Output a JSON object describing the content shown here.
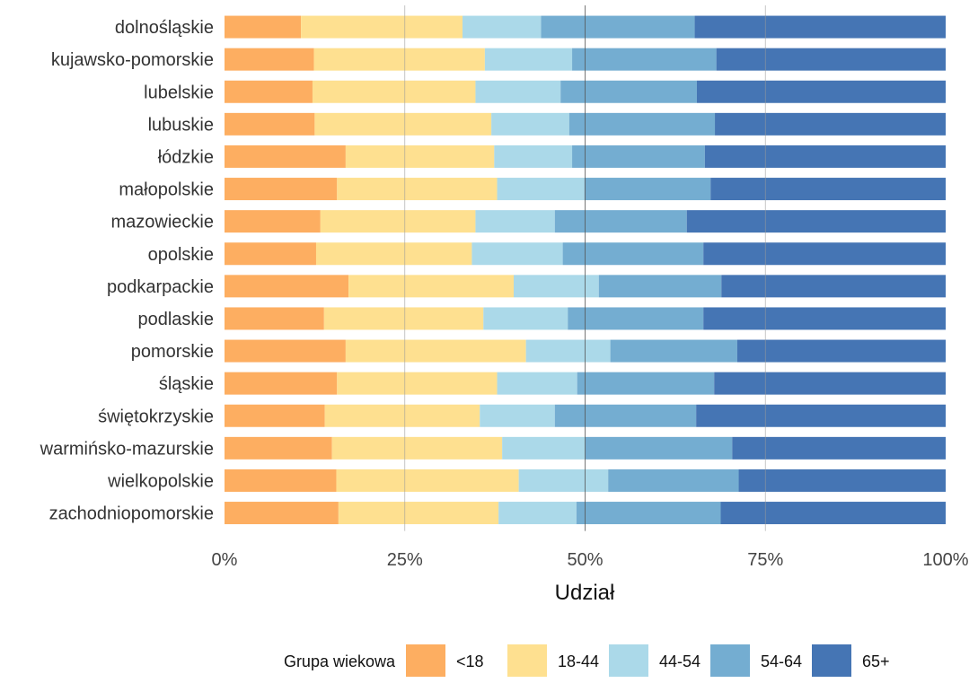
{
  "chart_data": {
    "type": "bar",
    "orientation": "horizontal",
    "stacked": true,
    "normalized": true,
    "xlabel": "Udział",
    "ylabel": "",
    "xlim": [
      0,
      1
    ],
    "x_ticks": [
      "0%",
      "25%",
      "50%",
      "75%",
      "100%"
    ],
    "grid": true,
    "legend": {
      "title": "Grupa wiekowa",
      "position": "bottom"
    },
    "categories": [
      "dolnośląskie",
      "kujawsko-pomorskie",
      "lubelskie",
      "lubuskie",
      "łódzkie",
      "małopolskie",
      "mazowieckie",
      "opolskie",
      "podkarpackie",
      "podlaskie",
      "pomorskie",
      "śląskie",
      "świętokrzyskie",
      "warmińsko-mazurskie",
      "wielkopolskie",
      "zachodniopomorskie"
    ],
    "series": [
      {
        "name": "<18",
        "color": "#fdae61",
        "values": [
          0.106,
          0.124,
          0.122,
          0.125,
          0.168,
          0.156,
          0.133,
          0.127,
          0.172,
          0.138,
          0.168,
          0.156,
          0.139,
          0.149,
          0.155,
          0.158
        ]
      },
      {
        "name": "18-44",
        "color": "#fee090",
        "values": [
          0.224,
          0.237,
          0.226,
          0.245,
          0.206,
          0.222,
          0.215,
          0.216,
          0.229,
          0.221,
          0.25,
          0.222,
          0.215,
          0.236,
          0.253,
          0.222
        ]
      },
      {
        "name": "44-54",
        "color": "#abd9e9",
        "values": [
          0.109,
          0.121,
          0.118,
          0.108,
          0.108,
          0.121,
          0.11,
          0.126,
          0.118,
          0.117,
          0.117,
          0.111,
          0.104,
          0.115,
          0.124,
          0.108
        ]
      },
      {
        "name": "54-64",
        "color": "#74add1",
        "values": [
          0.213,
          0.2,
          0.189,
          0.202,
          0.184,
          0.175,
          0.183,
          0.195,
          0.17,
          0.188,
          0.176,
          0.19,
          0.196,
          0.204,
          0.181,
          0.2
        ]
      },
      {
        "name": "65+",
        "color": "#4575b4",
        "values": [
          0.348,
          0.318,
          0.345,
          0.32,
          0.334,
          0.326,
          0.359,
          0.336,
          0.311,
          0.336,
          0.289,
          0.321,
          0.346,
          0.296,
          0.287,
          0.312
        ]
      }
    ]
  }
}
